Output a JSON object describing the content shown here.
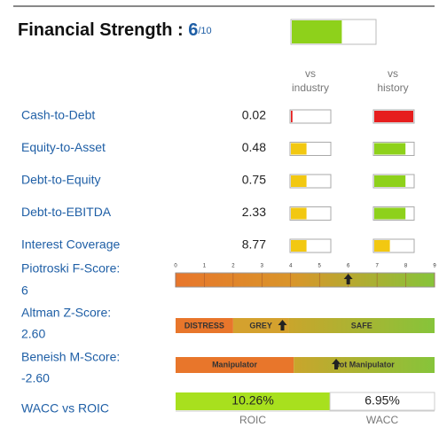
{
  "header": {
    "title": "Financial Strength : ",
    "score": 6,
    "score_max": "/10",
    "score_scale": 10,
    "score_color": "#8ed11b"
  },
  "columns": [
    [
      "vs",
      "industry"
    ],
    [
      "vs",
      "history"
    ]
  ],
  "bar_scale": 10,
  "rows": [
    {
      "name": "Cash-to-Debt",
      "value": "0.02",
      "industry": 0.4,
      "industry_color": "#e61e1e",
      "history": 10,
      "history_color": "#e61e1e"
    },
    {
      "name": "Equity-to-Asset",
      "value": "0.48",
      "industry": 4,
      "industry_color": "#f2c811",
      "history": 8,
      "history_color": "#8ed11b"
    },
    {
      "name": "Debt-to-Equity",
      "value": "0.75",
      "industry": 4,
      "industry_color": "#f2c811",
      "history": 8,
      "history_color": "#8ed11b"
    },
    {
      "name": "Debt-to-EBITDA",
      "value": "2.33",
      "industry": 4,
      "industry_color": "#f2c811",
      "history": 8,
      "history_color": "#8ed11b"
    },
    {
      "name": "Interest Coverage",
      "value": "8.77",
      "industry": 4,
      "industry_color": "#f2c811",
      "history": 4,
      "history_color": "#f2c811"
    }
  ],
  "piotroski": {
    "name": "Piotroski F-Score:",
    "score": 6,
    "ticks": [
      0,
      1,
      2,
      3,
      4,
      5,
      6,
      7,
      8,
      9
    ]
  },
  "altman": {
    "name": "Altman Z-Score:",
    "value": 2.6,
    "value_label": "2.60",
    "range": [
      0,
      6.3
    ],
    "zones": [
      {
        "label": "DISTRESS",
        "end": 1.4
      },
      {
        "label": "GREY",
        "end": 2.75
      },
      {
        "label": "SAFE",
        "end": 6.3
      }
    ]
  },
  "beneish": {
    "name": "Beneish M-Score:",
    "value": -2.6,
    "value_label": "-2.60",
    "range": [
      0.5,
      -4.5
    ],
    "threshold": -1.78,
    "zones": [
      "Manipulator",
      "Not Manipulator"
    ]
  },
  "wacc_roic": {
    "name": "WACC vs ROIC",
    "roic": 10.26,
    "roic_label": "10.26%",
    "wacc": 6.95,
    "wacc_label": "6.95%",
    "roic_name": "ROIC",
    "wacc_name": "WACC"
  }
}
